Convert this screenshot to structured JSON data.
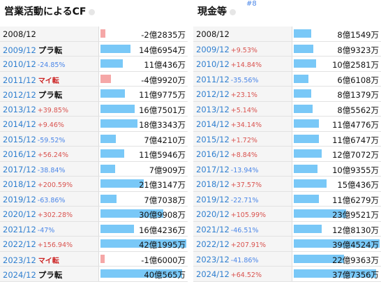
{
  "left": {
    "title": "営業活動によるCF",
    "rows": [
      {
        "year": "2008/12",
        "change": "",
        "change_dir": "",
        "tag": "",
        "value": "-2億2835万",
        "amount": -2.2835
      },
      {
        "year": "2009/12",
        "change": "",
        "change_dir": "",
        "tag": "プラ転",
        "value": "14億6954万",
        "amount": 14.6954
      },
      {
        "year": "2010/12",
        "change": "-24.85%",
        "change_dir": "neg",
        "tag": "",
        "value": "11億436万",
        "amount": 11.0436
      },
      {
        "year": "2011/12",
        "change": "",
        "change_dir": "",
        "tag": "マイ転",
        "value": "-4億9920万",
        "amount": -4.992
      },
      {
        "year": "2012/12",
        "change": "",
        "change_dir": "",
        "tag": "プラ転",
        "value": "11億9775万",
        "amount": 11.9775
      },
      {
        "year": "2013/12",
        "change": "+39.85%",
        "change_dir": "pos",
        "tag": "",
        "value": "16億7501万",
        "amount": 16.7501
      },
      {
        "year": "2014/12",
        "change": "+9.46%",
        "change_dir": "pos",
        "tag": "",
        "value": "18億3343万",
        "amount": 18.3343
      },
      {
        "year": "2015/12",
        "change": "-59.52%",
        "change_dir": "neg",
        "tag": "",
        "value": "7億4210万",
        "amount": 7.421
      },
      {
        "year": "2016/12",
        "change": "+56.24%",
        "change_dir": "pos",
        "tag": "",
        "value": "11億5946万",
        "amount": 11.5946
      },
      {
        "year": "2017/12",
        "change": "-38.84%",
        "change_dir": "neg",
        "tag": "",
        "value": "7億909万",
        "amount": 7.0909
      },
      {
        "year": "2018/12",
        "change": "+200.59%",
        "change_dir": "pos",
        "tag": "",
        "value": "21億3147万",
        "amount": 21.3147
      },
      {
        "year": "2019/12",
        "change": "-63.86%",
        "change_dir": "neg",
        "tag": "",
        "value": "7億7038万",
        "amount": 7.7038
      },
      {
        "year": "2020/12",
        "change": "+302.28%",
        "change_dir": "pos",
        "tag": "",
        "value": "30億9908万",
        "amount": 30.9908
      },
      {
        "year": "2021/12",
        "change": "-47%",
        "change_dir": "neg",
        "tag": "",
        "value": "16億4236万",
        "amount": 16.4236
      },
      {
        "year": "2022/12",
        "change": "+156.94%",
        "change_dir": "pos",
        "tag": "",
        "value": "42億1995万",
        "amount": 42.1995
      },
      {
        "year": "2023/12",
        "change": "",
        "change_dir": "",
        "tag": "マイ転",
        "value": "-1億6000万",
        "amount": -1.6
      },
      {
        "year": "2024/12",
        "change": "",
        "change_dir": "",
        "tag": "プラ転",
        "value": "40億565万",
        "amount": 40.0565
      }
    ]
  },
  "right": {
    "title": "現金等",
    "ref": "#8",
    "rows": [
      {
        "year": "2008/12",
        "change": "",
        "change_dir": "",
        "tag": "",
        "value": "8億1549万",
        "amount": 8.1549
      },
      {
        "year": "2009/12",
        "change": "+9.53%",
        "change_dir": "pos",
        "tag": "",
        "value": "8億9323万",
        "amount": 8.9323
      },
      {
        "year": "2010/12",
        "change": "+14.84%",
        "change_dir": "pos",
        "tag": "",
        "value": "10億2581万",
        "amount": 10.2581
      },
      {
        "year": "2011/12",
        "change": "-35.56%",
        "change_dir": "neg",
        "tag": "",
        "value": "6億6108万",
        "amount": 6.6108
      },
      {
        "year": "2012/12",
        "change": "+23.1%",
        "change_dir": "pos",
        "tag": "",
        "value": "8億1379万",
        "amount": 8.1379
      },
      {
        "year": "2013/12",
        "change": "+5.14%",
        "change_dir": "pos",
        "tag": "",
        "value": "8億5562万",
        "amount": 8.5562
      },
      {
        "year": "2014/12",
        "change": "+34.14%",
        "change_dir": "pos",
        "tag": "",
        "value": "11億4776万",
        "amount": 11.4776
      },
      {
        "year": "2015/12",
        "change": "+1.72%",
        "change_dir": "pos",
        "tag": "",
        "value": "11億6747万",
        "amount": 11.6747
      },
      {
        "year": "2016/12",
        "change": "+8.84%",
        "change_dir": "pos",
        "tag": "",
        "value": "12億7072万",
        "amount": 12.7072
      },
      {
        "year": "2017/12",
        "change": "-13.94%",
        "change_dir": "neg",
        "tag": "",
        "value": "10億9355万",
        "amount": 10.9355
      },
      {
        "year": "2018/12",
        "change": "+37.57%",
        "change_dir": "pos",
        "tag": "",
        "value": "15億436万",
        "amount": 15.0436
      },
      {
        "year": "2019/12",
        "change": "-22.71%",
        "change_dir": "neg",
        "tag": "",
        "value": "11億6279万",
        "amount": 11.6279
      },
      {
        "year": "2020/12",
        "change": "+105.99%",
        "change_dir": "pos",
        "tag": "",
        "value": "23億9521万",
        "amount": 23.9521
      },
      {
        "year": "2021/12",
        "change": "-46.51%",
        "change_dir": "neg",
        "tag": "",
        "value": "12億8130万",
        "amount": 12.813
      },
      {
        "year": "2022/12",
        "change": "+207.91%",
        "change_dir": "pos",
        "tag": "",
        "value": "39億4524万",
        "amount": 39.4524
      },
      {
        "year": "2023/12",
        "change": "-41.86%",
        "change_dir": "neg",
        "tag": "",
        "value": "22億9363万",
        "amount": 22.9363
      },
      {
        "year": "2024/12",
        "change": "+64.52%",
        "change_dir": "pos",
        "tag": "",
        "value": "37億7356万",
        "amount": 37.7356
      }
    ]
  },
  "colors": {
    "positive_bar": "#79c8f7",
    "negative_bar": "#f5a7a7",
    "rise_text": "#d9534f",
    "fall_text": "#4a86e8"
  },
  "icons": {
    "title_marker": "circle-icon"
  }
}
